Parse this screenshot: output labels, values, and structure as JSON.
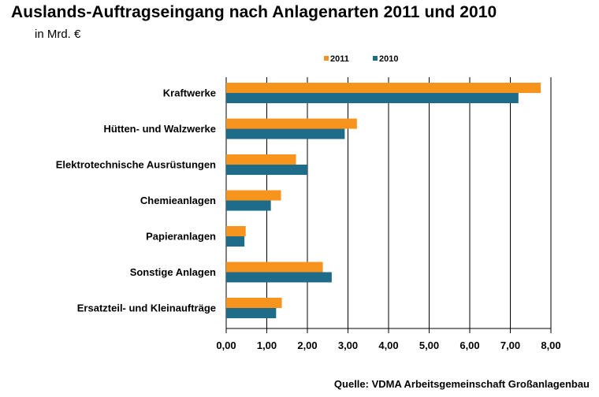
{
  "header": {
    "title": "Auslands-Auftragseingang nach Anlagenarten 2011 und 2010",
    "subtitle": "in Mrd. €"
  },
  "footer": {
    "source": "Quelle: VDMA Arbeitsgemeinschaft Großanlagenbau"
  },
  "chart_data": {
    "type": "bar",
    "orientation": "horizontal",
    "title": "Auslands-Auftragseingang nach Anlagenarten 2011 und 2010",
    "subtitle": "in Mrd. €",
    "categories": [
      "Kraftwerke",
      "Hütten- und Walzwerke",
      "Elektrotechnische Ausrüstungen",
      "Chemieanlagen",
      "Papieranlagen",
      "Sonstige Anlagen",
      "Ersatzteil- und Kleinaufträge"
    ],
    "series": [
      {
        "name": "2011",
        "color": "#f7941d",
        "values": [
          7.75,
          3.22,
          1.72,
          1.35,
          0.48,
          2.38,
          1.37
        ]
      },
      {
        "name": "2010",
        "color": "#1f6b8a",
        "values": [
          7.2,
          2.92,
          2.0,
          1.1,
          0.45,
          2.6,
          1.23
        ]
      }
    ],
    "xlim": [
      0,
      8
    ],
    "ticks": [
      "0,00",
      "1,00",
      "2,00",
      "3,00",
      "4,00",
      "5,00",
      "6,00",
      "7,00",
      "8,00"
    ],
    "grid": "vertical",
    "legend": "top-center"
  }
}
